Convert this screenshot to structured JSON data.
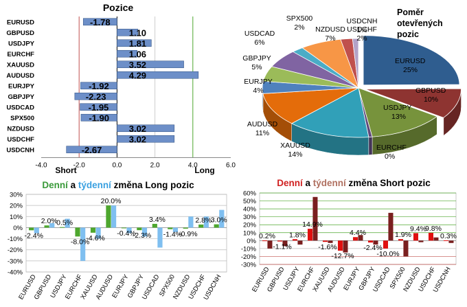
{
  "positions": {
    "title": "Pozice",
    "x_min": -4.0,
    "x_max": 6.0,
    "x_ticks": [
      "-4.0",
      "-2.0",
      "0.0",
      "2.0",
      "4.0",
      "6.0"
    ],
    "short_label": "Short",
    "long_label": "Long",
    "categories": [
      "EURUSD",
      "GBPUSD",
      "USDJPY",
      "EURCHF",
      "XAUUSD",
      "AUDUSD",
      "EURJPY",
      "GBPJPY",
      "USDCAD",
      "SPX500",
      "NZDUSD",
      "USDCHF",
      "USDCNH"
    ],
    "values": [
      -1.78,
      1.1,
      1.81,
      1.06,
      3.52,
      4.29,
      -1.92,
      -2.23,
      -1.95,
      -1.9,
      3.02,
      3.02,
      -2.67
    ],
    "value_labels": [
      "-1.78",
      "1.10",
      "1.81",
      "1.06",
      "3.52",
      "4.29",
      "-1.92",
      "-2.23",
      "-1.95",
      "-1.90",
      "3.02",
      "3.02",
      "-2.67"
    ],
    "colors": {
      "bar": "#6d8fc8",
      "short_line": "#c0504d",
      "long_line": "#4ea72e"
    }
  },
  "pie": {
    "title_lines": [
      "Poměr",
      "otevřených",
      "pozic"
    ],
    "slices": [
      {
        "name": "EURUSD",
        "pct": 25,
        "label": "25%",
        "color": "#2f5d8f"
      },
      {
        "name": "GBPUSD",
        "pct": 10,
        "label": "10%",
        "color": "#8e3431"
      },
      {
        "name": "USDJPY",
        "pct": 13,
        "label": "13%",
        "color": "#77933c"
      },
      {
        "name": "EURCHF",
        "pct": 0.6,
        "label": "0%",
        "color": "#5f497a"
      },
      {
        "name": "XAUUSD",
        "pct": 14,
        "label": "14%",
        "color": "#31a0b8"
      },
      {
        "name": "AUDUSD",
        "pct": 11,
        "label": "11%",
        "color": "#e46c0a"
      },
      {
        "name": "EURJPY",
        "pct": 4,
        "label": "4%",
        "color": "#4f81bd"
      },
      {
        "name": "GBPJPY",
        "pct": 5,
        "label": "5%",
        "color": "#9bbb59"
      },
      {
        "name": "USDCAD",
        "pct": 6,
        "label": "6%",
        "color": "#8064a2"
      },
      {
        "name": "SPX500",
        "pct": 2,
        "label": "2%",
        "color": "#4bacc6"
      },
      {
        "name": "NZDUSD",
        "pct": 7,
        "label": "7%",
        "color": "#f79646"
      },
      {
        "name": "USDCHF",
        "pct": 2,
        "label": "2%",
        "color": "#c0504d"
      },
      {
        "name": "USDCNH",
        "pct": 1,
        "label": "1%",
        "color": "#b3a2c7"
      }
    ]
  },
  "long_change": {
    "title_parts": [
      "Denní",
      " a ",
      "týdenní",
      " změna Long pozic"
    ],
    "title_colors": [
      "#3a9a3a",
      "#000000",
      "#3aa0e0",
      "#000000"
    ],
    "y_min": -40,
    "y_max": 30,
    "y_ticks": [
      "30%",
      "20%",
      "10%",
      "0%",
      "-10%",
      "-20%",
      "-30%",
      "-40%"
    ],
    "categories": [
      "EURUSD",
      "GBPUSD",
      "USDJPY",
      "EURCHF",
      "XAUUSD",
      "AUDUSD",
      "EURJPY",
      "GBPJPY",
      "USDCAD",
      "SPX500",
      "NZDUSD",
      "USDCHF",
      "USDCNH"
    ],
    "daily": [
      -2.4,
      2.0,
      0.5,
      -8.0,
      -4.6,
      20.0,
      -0.4,
      -2.3,
      3.4,
      -1.4,
      -0.9,
      2.8,
      3.0
    ],
    "weekly": [
      -5,
      4,
      8,
      -30,
      -10,
      20,
      -5,
      -8,
      -18,
      -4,
      10,
      10,
      16
    ],
    "daily_labels": [
      "-2.4%",
      "2.0%",
      "0.5%",
      "-8.0%",
      "-4.6%",
      "20.0%",
      "-0.4%",
      "-2.3%",
      "3.4%",
      "-1.4%",
      "-0.9%",
      "2.8%",
      "3.0%"
    ],
    "daily_color": "#4ea72e",
    "weekly_color": "#7fbff0"
  },
  "short_change": {
    "title_parts": [
      "Denní",
      " a ",
      "týdenní",
      " změna Short pozic"
    ],
    "title_colors": [
      "#d02020",
      "#000000",
      "#b07060",
      "#000000"
    ],
    "y_min": -30,
    "y_max": 60,
    "y_ticks": [
      "60%",
      "50%",
      "40%",
      "30%",
      "20%",
      "10%",
      "0%",
      "-10%",
      "-20%",
      "-30%"
    ],
    "categories": [
      "EURUSD",
      "GBPUSD",
      "USDJPY",
      "EURCHF",
      "XAUUSD",
      "AUDUSD",
      "EURJPY",
      "GBPJPY",
      "USDCAD",
      "SPX500",
      "NZDUSD",
      "USDCHF",
      "USDCNH"
    ],
    "daily": [
      0.2,
      -1.1,
      1.8,
      14.9,
      -1.6,
      -12.7,
      4.4,
      -2.4,
      -10.0,
      1.9,
      9.4,
      9.8,
      0.3
    ],
    "weekly": [
      -10,
      -7,
      -5,
      55,
      -3,
      -15,
      7,
      -5,
      35,
      -20,
      -2,
      4,
      -3
    ],
    "daily_labels": [
      "0.2%",
      "-1.1%",
      "1.8%",
      "14.9%",
      "-1.6%",
      "-12.7%",
      "4.4%",
      "-2.4%",
      "-10.0%",
      "1.9%",
      "9.4%",
      "9.8%",
      "0.3%"
    ],
    "daily_color": "#e01010",
    "weekly_color": "#7a1f1f"
  }
}
